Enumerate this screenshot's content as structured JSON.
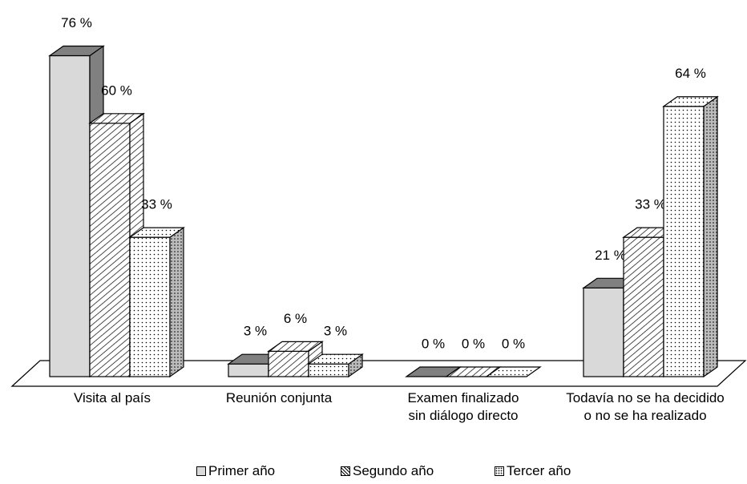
{
  "chart_data": {
    "type": "bar3d",
    "categories": [
      "Visita al país",
      "Reunión conjunta",
      "Examen finalizado\nsin diálogo directo",
      "Todavía no se ha decidido\no no se ha realizado"
    ],
    "series": [
      {
        "name": "Primer año",
        "color": "#d9d9d9",
        "values": [
          76,
          3,
          0,
          21
        ],
        "value_labels": [
          "76 %",
          "3 %",
          "0 %",
          "21 %"
        ]
      },
      {
        "name": "Segundo año",
        "color": "#ffffff",
        "values": [
          60,
          6,
          0,
          33
        ],
        "value_labels": [
          "60 %",
          "6 %",
          "0 %",
          "33 %"
        ]
      },
      {
        "name": "Tercer año",
        "color": "#ffffff",
        "values": [
          33,
          3,
          0,
          64
        ],
        "value_labels": [
          "33 %",
          "3 %",
          "0 %",
          "64 %"
        ]
      }
    ]
  }
}
